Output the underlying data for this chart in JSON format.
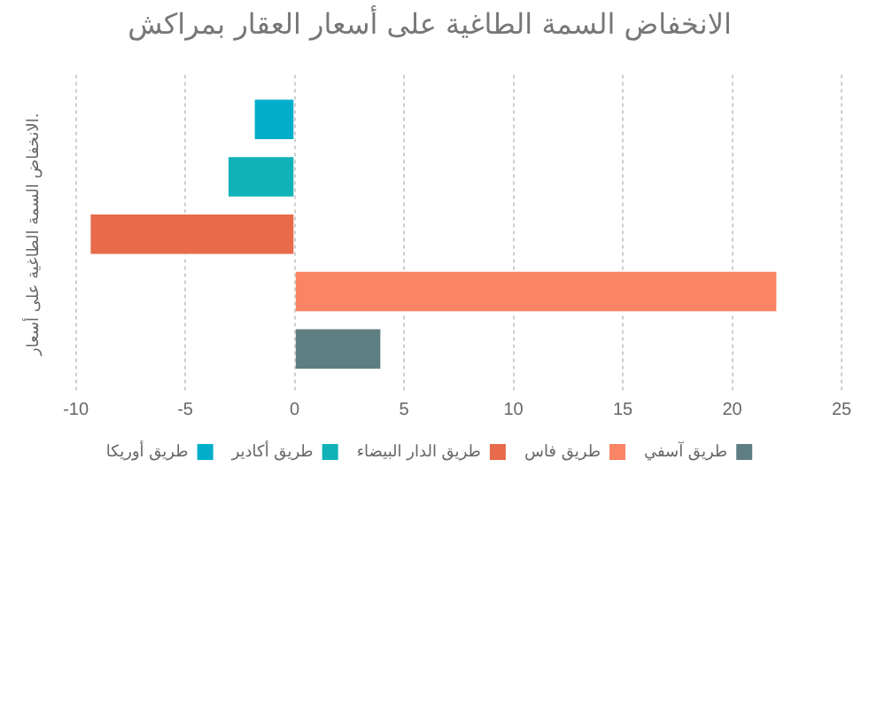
{
  "chart_data": {
    "type": "bar",
    "orientation": "horizontal",
    "title": "الانخفاض السمة الطاغية على أسعار العقار بمراكش",
    "ylabel": "الانخفاض السمة الطاغية على أسعار.",
    "categories": [
      null
    ],
    "series": [
      {
        "name": "طريق أوريكا",
        "color": "#00aecb",
        "values": [
          -1.9
        ]
      },
      {
        "name": "طريق أكادير",
        "color": "#10b2b8",
        "values": [
          -3.1
        ]
      },
      {
        "name": "طريق الدار البيضاء",
        "color": "#e76a4b",
        "values": [
          -9.4
        ]
      },
      {
        "name": "طريق فاس",
        "color": "#fa8466",
        "values": [
          22.1
        ]
      },
      {
        "name": "طريق آسفي",
        "color": "#5f7e82",
        "values": [
          4
        ]
      }
    ],
    "xlim": [
      -10,
      25
    ],
    "xticks": [
      -10,
      -5,
      0,
      5,
      10,
      15,
      20,
      25
    ],
    "grid": "x",
    "legend": "bottom"
  }
}
